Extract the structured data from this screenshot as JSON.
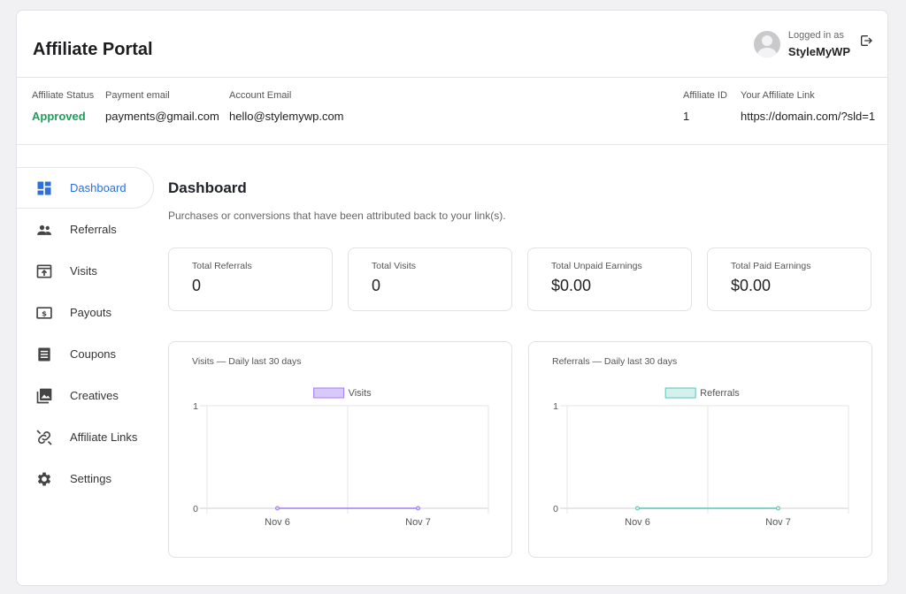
{
  "header": {
    "title": "Affiliate Portal",
    "logged_in_label": "Logged in as",
    "username": "StyleMyWP"
  },
  "info": {
    "status_label": "Affiliate Status",
    "status_value": "Approved",
    "payment_email_label": "Payment email",
    "payment_email_value": "payments@gmail.com",
    "account_email_label": "Account Email",
    "account_email_value": "hello@stylemywp.com",
    "affiliate_id_label": "Affiliate ID",
    "affiliate_id_value": "1",
    "link_label": "Your Affiliate Link",
    "link_value": "https://domain.com/?sld=1"
  },
  "sidebar": {
    "items": [
      {
        "label": "Dashboard",
        "icon": "dashboard-icon",
        "active": true
      },
      {
        "label": "Referrals",
        "icon": "people-icon"
      },
      {
        "label": "Visits",
        "icon": "visits-icon"
      },
      {
        "label": "Payouts",
        "icon": "dollar-icon"
      },
      {
        "label": "Coupons",
        "icon": "coupon-icon"
      },
      {
        "label": "Creatives",
        "icon": "image-icon"
      },
      {
        "label": "Affiliate Links",
        "icon": "link-icon"
      },
      {
        "label": "Settings",
        "icon": "gear-icon"
      }
    ]
  },
  "main": {
    "title": "Dashboard",
    "subtitle": "Purchases or conversions that have been attributed back to your link(s).",
    "cards": [
      {
        "label": "Total Referrals",
        "value": "0"
      },
      {
        "label": "Total Visits",
        "value": "0"
      },
      {
        "label": "Total Unpaid Earnings",
        "value": "$0.00"
      },
      {
        "label": "Total Paid Earnings",
        "value": "$0.00"
      }
    ]
  },
  "colors": {
    "accent": "#2f6fd8",
    "approved": "#1e9e58",
    "visits_fill": "#d9c8fb",
    "visits_stroke": "#a27cf0",
    "referrals_fill": "#d3f2ee",
    "referrals_stroke": "#5cc2b5"
  },
  "chart_data": [
    {
      "type": "line",
      "title": "Visits — Daily last 30 days",
      "categories": [
        "Nov 6",
        "Nov 7"
      ],
      "series": [
        {
          "name": "Visits",
          "values": [
            0,
            0
          ]
        }
      ],
      "ylim": [
        0,
        1
      ],
      "yticks": [
        "1",
        "0"
      ],
      "legend": "top",
      "grid": true
    },
    {
      "type": "line",
      "title": "Referrals — Daily last 30 days",
      "categories": [
        "Nov 6",
        "Nov 7"
      ],
      "series": [
        {
          "name": "Referrals",
          "values": [
            0,
            0
          ]
        }
      ],
      "ylim": [
        0,
        1
      ],
      "yticks": [
        "1",
        "0"
      ],
      "legend": "top",
      "grid": true
    }
  ]
}
